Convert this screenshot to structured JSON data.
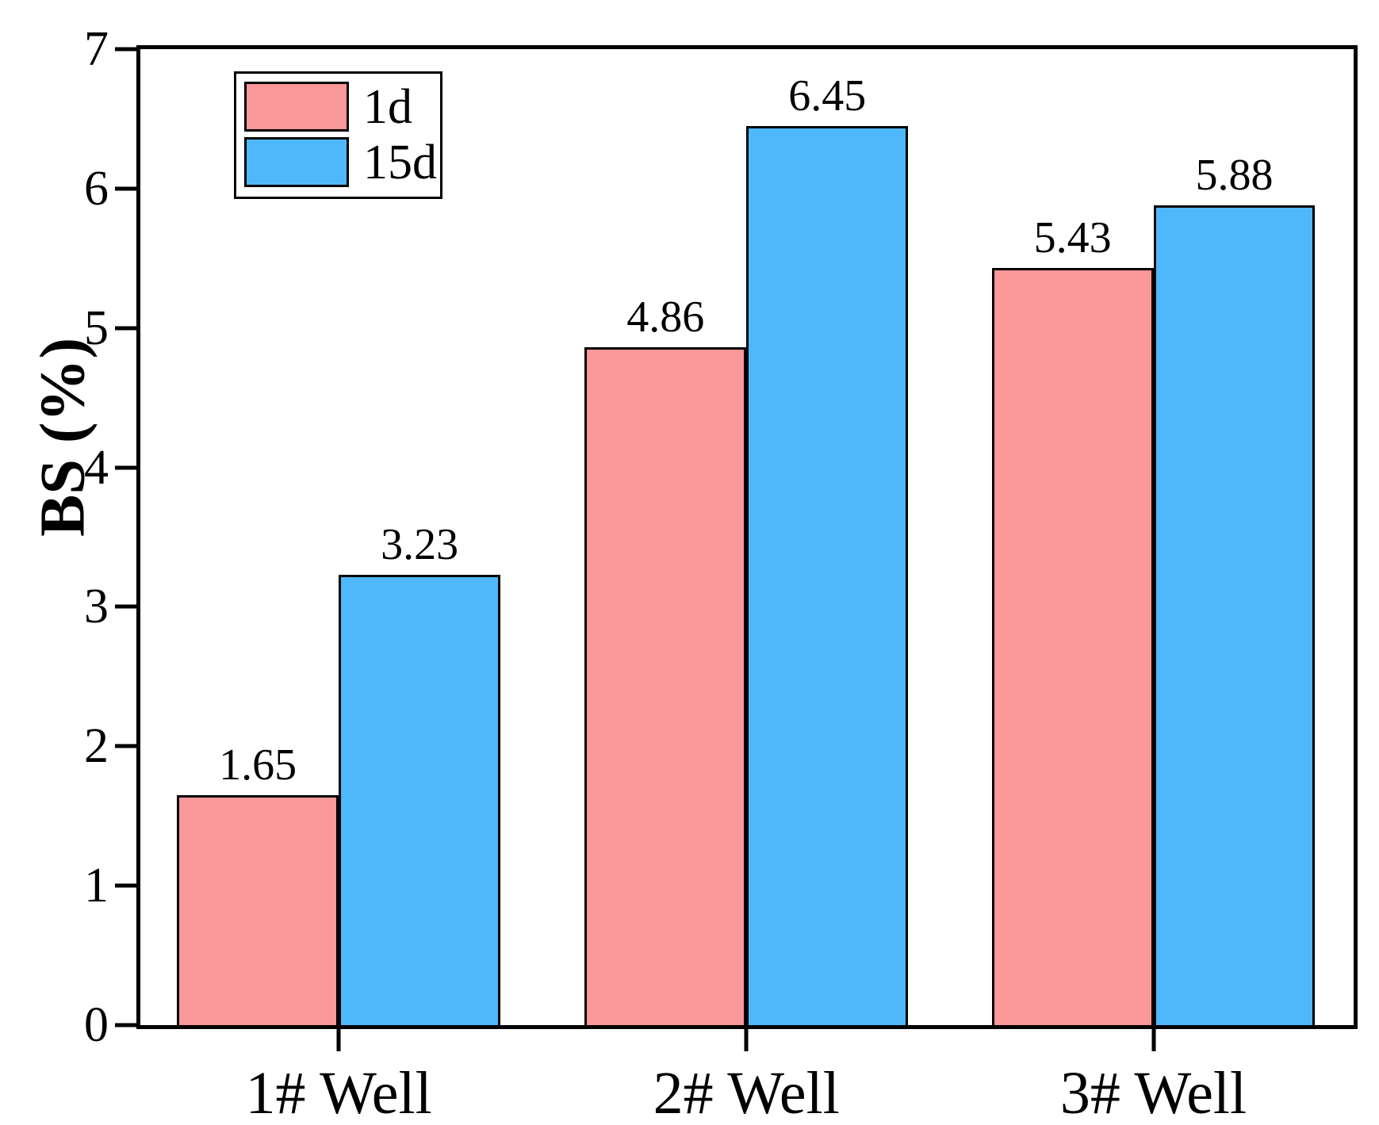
{
  "chart_data": {
    "type": "bar",
    "title": "",
    "categories": [
      "1# Well",
      "2# Well",
      "3# Well"
    ],
    "series": [
      {
        "name": "1d",
        "color": "#FA9798",
        "values": [
          1.65,
          4.86,
          5.43
        ]
      },
      {
        "name": "15d",
        "color": "#4FB8FB",
        "values": [
          3.23,
          6.45,
          5.88
        ]
      }
    ],
    "bar_value_labels": [
      [
        "1.65",
        "4.86",
        "5.43"
      ],
      [
        "3.23",
        "6.45",
        "5.88"
      ]
    ],
    "xlabel": "",
    "ylabel": "BS (%)",
    "ylim": [
      0,
      7
    ],
    "yticks": [
      "0",
      "1",
      "2",
      "3",
      "4",
      "5",
      "6",
      "7"
    ],
    "grid": false,
    "plot_frame": "full-box",
    "legend_position": "top-left-inside",
    "axis_color": "#000000",
    "bar_outline_color": "#000000",
    "background_color": "#ffffff"
  }
}
